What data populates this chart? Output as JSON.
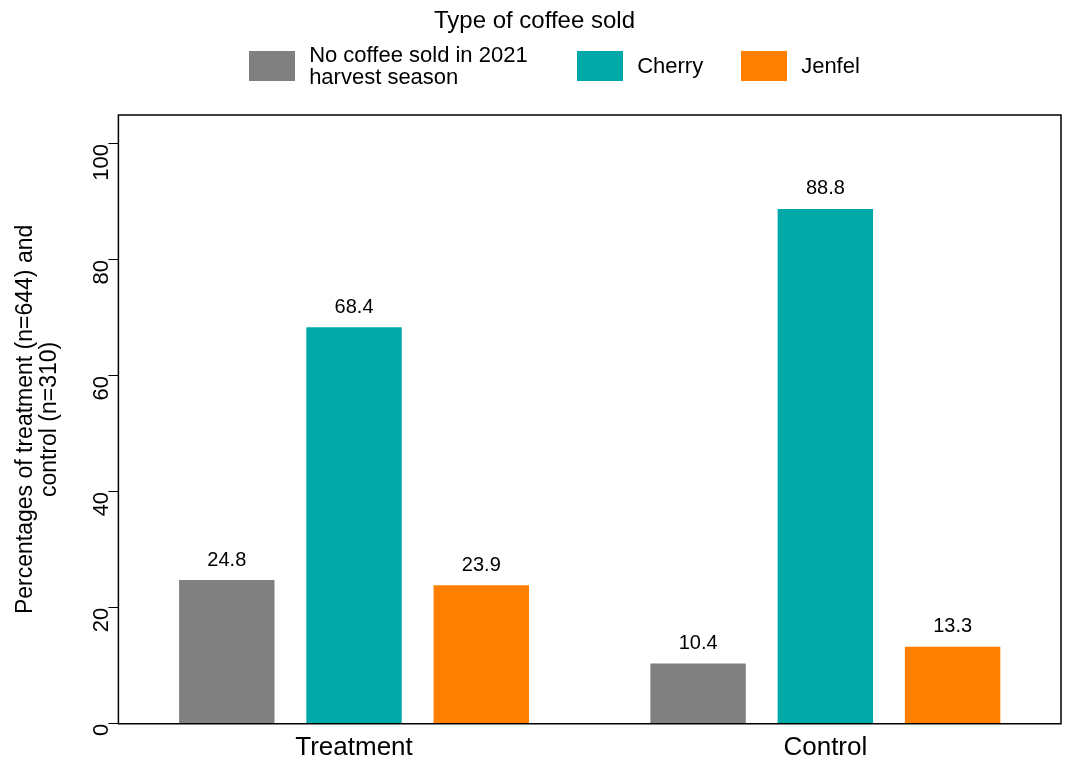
{
  "chart_data": {
    "type": "bar",
    "legend_title": "Type of coffee sold",
    "ylabel": "Percentages of treatment (n=644) and control (n=310)",
    "categories": [
      "Treatment",
      "Control"
    ],
    "series": [
      {
        "name": "No coffee sold in 2021 harvest season",
        "color": "#808080",
        "values": [
          24.8,
          10.4
        ]
      },
      {
        "name": "Cherry",
        "color": "#00a8a8",
        "values": [
          68.4,
          88.8
        ]
      },
      {
        "name": "Jenfel",
        "color": "#ff7f00",
        "values": [
          23.9,
          13.3
        ]
      }
    ],
    "ylim": [
      0,
      105
    ],
    "yticks": [
      0,
      20,
      40,
      60,
      80,
      100
    ],
    "grid": false,
    "legend": "top",
    "data_labels": true
  }
}
